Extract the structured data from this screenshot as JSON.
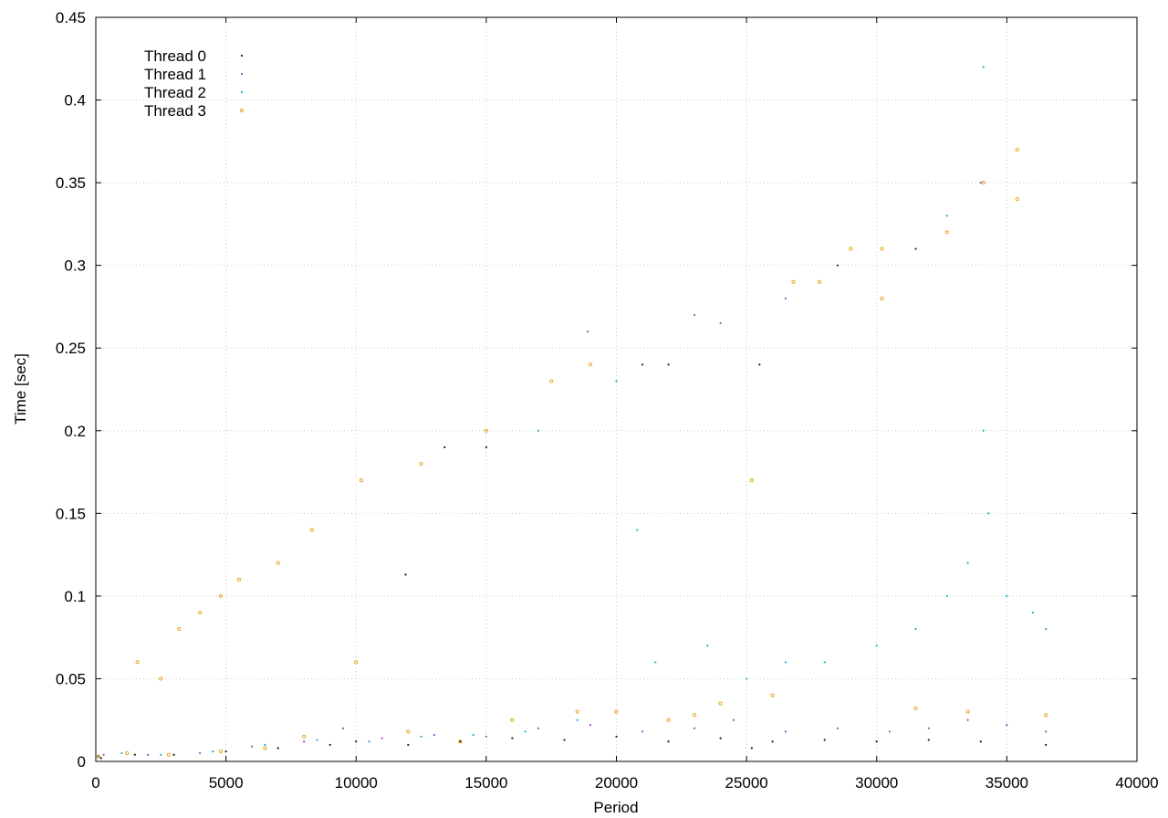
{
  "chart_data": {
    "type": "scatter",
    "title": "",
    "xlabel": "Period",
    "ylabel": "Time [sec]",
    "xlim": [
      0,
      40000
    ],
    "ylim": [
      0,
      0.45
    ],
    "x_ticks": [
      "0",
      "5000",
      "10000",
      "15000",
      "20000",
      "25000",
      "30000",
      "35000",
      "40000"
    ],
    "y_ticks": [
      "0",
      "0.05",
      "0.1",
      "0.15",
      "0.2",
      "0.25",
      "0.3",
      "0.35",
      "0.4",
      "0.45"
    ],
    "grid": true,
    "legend_position": "top-left",
    "series": [
      {
        "name": "Thread 0",
        "color": "#1a1a1a",
        "marker": "dot",
        "points": [
          [
            200,
            0.002
          ],
          [
            1500,
            0.004
          ],
          [
            3000,
            0.004
          ],
          [
            5000,
            0.006
          ],
          [
            7000,
            0.008
          ],
          [
            9000,
            0.01
          ],
          [
            10000,
            0.012
          ],
          [
            12000,
            0.01
          ],
          [
            14000,
            0.012
          ],
          [
            16000,
            0.014
          ],
          [
            18000,
            0.013
          ],
          [
            20000,
            0.015
          ],
          [
            22000,
            0.012
          ],
          [
            24000,
            0.014
          ],
          [
            25200,
            0.008
          ],
          [
            26000,
            0.012
          ],
          [
            28000,
            0.013
          ],
          [
            30000,
            0.012
          ],
          [
            32000,
            0.013
          ],
          [
            34000,
            0.012
          ],
          [
            36500,
            0.01
          ],
          [
            13400,
            0.19
          ],
          [
            11900,
            0.113
          ],
          [
            15000,
            0.19
          ],
          [
            21000,
            0.24
          ],
          [
            22000,
            0.24
          ],
          [
            25500,
            0.24
          ],
          [
            28500,
            0.3
          ],
          [
            31500,
            0.31
          ]
        ]
      },
      {
        "name": "Thread 1",
        "color": "#9a4fc0",
        "marker": "dot",
        "points": [
          [
            300,
            0.004
          ],
          [
            2000,
            0.004
          ],
          [
            4000,
            0.005
          ],
          [
            6000,
            0.009
          ],
          [
            8000,
            0.012
          ],
          [
            9500,
            0.02
          ],
          [
            11000,
            0.014
          ],
          [
            13000,
            0.016
          ],
          [
            15000,
            0.015
          ],
          [
            17000,
            0.02
          ],
          [
            19000,
            0.022
          ],
          [
            21000,
            0.018
          ],
          [
            23000,
            0.02
          ],
          [
            24500,
            0.025
          ],
          [
            26500,
            0.018
          ],
          [
            28500,
            0.02
          ],
          [
            30500,
            0.018
          ],
          [
            32000,
            0.02
          ],
          [
            33500,
            0.025
          ],
          [
            35000,
            0.022
          ],
          [
            36500,
            0.018
          ],
          [
            18900,
            0.26
          ],
          [
            23000,
            0.27
          ],
          [
            24000,
            0.265
          ],
          [
            26500,
            0.28
          ],
          [
            34000,
            0.35
          ]
        ]
      },
      {
        "name": "Thread 2",
        "color": "#2ca5d4",
        "marker": "dot",
        "points": [
          [
            100,
            0.003
          ],
          [
            1000,
            0.005
          ],
          [
            2500,
            0.004
          ],
          [
            4500,
            0.006
          ],
          [
            6500,
            0.01
          ],
          [
            8500,
            0.013
          ],
          [
            10500,
            0.012
          ],
          [
            12500,
            0.015
          ],
          [
            14500,
            0.016
          ],
          [
            16500,
            0.018
          ],
          [
            18500,
            0.025
          ],
          [
            20800,
            0.14
          ],
          [
            21500,
            0.06
          ],
          [
            23500,
            0.07
          ],
          [
            25000,
            0.05
          ],
          [
            26500,
            0.06
          ],
          [
            28000,
            0.06
          ],
          [
            30000,
            0.07
          ],
          [
            31500,
            0.08
          ],
          [
            32700,
            0.1
          ],
          [
            33500,
            0.12
          ],
          [
            34100,
            0.2
          ],
          [
            34300,
            0.15
          ],
          [
            35000,
            0.1
          ],
          [
            36000,
            0.09
          ],
          [
            36500,
            0.08
          ],
          [
            34100,
            0.42
          ],
          [
            32700,
            0.33
          ],
          [
            20000,
            0.23
          ],
          [
            17000,
            0.2
          ]
        ]
      },
      {
        "name": "Thread 3",
        "color": "#e6a10f",
        "marker": "circle",
        "points": [
          [
            100,
            0.003
          ],
          [
            1200,
            0.005
          ],
          [
            2800,
            0.004
          ],
          [
            4800,
            0.006
          ],
          [
            5500,
            0.11
          ],
          [
            6500,
            0.008
          ],
          [
            8000,
            0.015
          ],
          [
            10000,
            0.06
          ],
          [
            10200,
            0.17
          ],
          [
            12000,
            0.018
          ],
          [
            12500,
            0.18
          ],
          [
            14000,
            0.012
          ],
          [
            15000,
            0.2
          ],
          [
            16000,
            0.025
          ],
          [
            17500,
            0.23
          ],
          [
            18500,
            0.03
          ],
          [
            19000,
            0.24
          ],
          [
            20000,
            0.03
          ],
          [
            22000,
            0.025
          ],
          [
            23000,
            0.028
          ],
          [
            24000,
            0.035
          ],
          [
            25200,
            0.17
          ],
          [
            26000,
            0.04
          ],
          [
            26800,
            0.29
          ],
          [
            27800,
            0.29
          ],
          [
            29000,
            0.31
          ],
          [
            30200,
            0.31
          ],
          [
            30200,
            0.28
          ],
          [
            31500,
            0.032
          ],
          [
            32700,
            0.32
          ],
          [
            33500,
            0.03
          ],
          [
            34100,
            0.35
          ],
          [
            35400,
            0.37
          ],
          [
            35400,
            0.34
          ],
          [
            36500,
            0.028
          ],
          [
            1600,
            0.06
          ],
          [
            2500,
            0.05
          ],
          [
            3200,
            0.08
          ],
          [
            4000,
            0.09
          ],
          [
            4800,
            0.1
          ],
          [
            7000,
            0.12
          ],
          [
            8300,
            0.14
          ]
        ]
      }
    ]
  }
}
